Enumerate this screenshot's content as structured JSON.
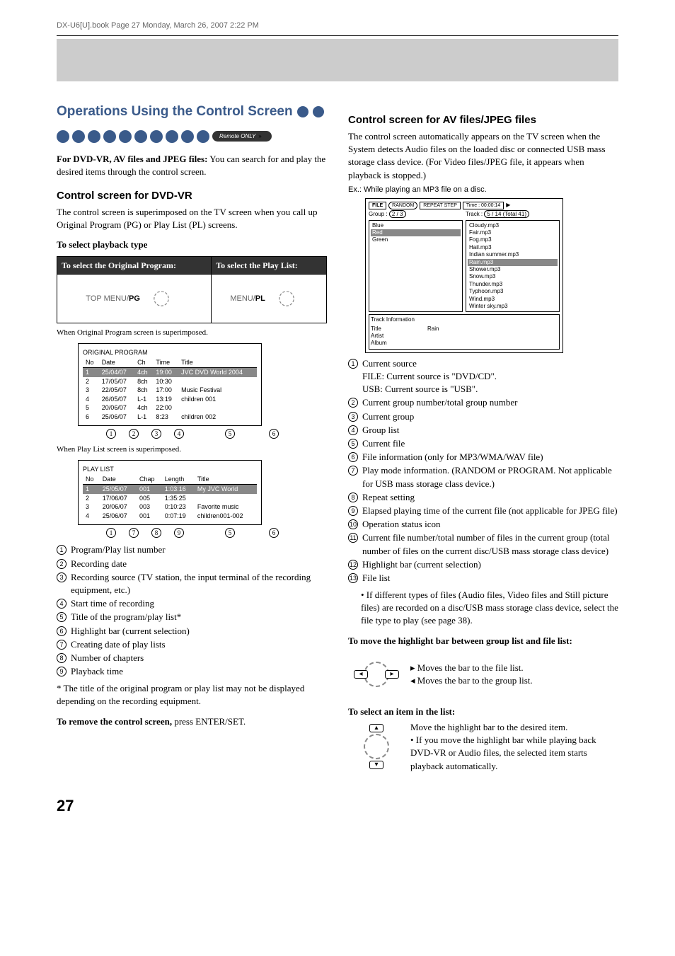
{
  "header": "DX-U6[U].book  Page 27  Monday, March 26, 2007  2:22 PM",
  "left": {
    "title": "Operations Using the Control Screen",
    "remote": "Remote ONLY",
    "intro_bold": "For DVD-VR, AV files and JPEG files:",
    "intro_rest": " You can search for and play the desired items through the control screen.",
    "h1": "Control screen for DVD-VR",
    "p1": "The control screen is superimposed on the TV screen when you call up Original Program (PG) or Play List (PL) screens.",
    "h2": "To select playback type",
    "th1": "To select the Original Program:",
    "th2": "To select the Play List:",
    "td1a": "TOP MENU/",
    "td1b": "PG",
    "td2a": "MENU/",
    "td2b": "PL",
    "cap1": "When Original Program screen is superimposed.",
    "op_title": "ORIGINAL PROGRAM",
    "op_head": [
      "No",
      "Date",
      "Ch",
      "Time",
      "Title"
    ],
    "op_rows": [
      [
        "1",
        "25/04/07",
        "4ch",
        "19:00",
        "JVC DVD World 2004"
      ],
      [
        "2",
        "17/05/07",
        "8ch",
        "10:30",
        ""
      ],
      [
        "3",
        "22/05/07",
        "8ch",
        "17:00",
        "Music Festival"
      ],
      [
        "4",
        "26/05/07",
        "L-1",
        "13:19",
        "children 001"
      ],
      [
        "5",
        "20/06/07",
        "4ch",
        "22:00",
        ""
      ],
      [
        "6",
        "25/06/07",
        "L-1",
        "8:23",
        "children 002"
      ]
    ],
    "cap2": "When Play List screen is superimposed.",
    "pl_title": "PLAY LIST",
    "pl_head": [
      "No",
      "Date",
      "Chap",
      "Length",
      "Title"
    ],
    "pl_rows": [
      [
        "1",
        "25/05/07",
        "001",
        "1:03:16",
        "My JVC World"
      ],
      [
        "2",
        "17/06/07",
        "005",
        "1:35:25",
        ""
      ],
      [
        "3",
        "20/06/07",
        "003",
        "0:10:23",
        "Favorite music"
      ],
      [
        "4",
        "25/06/07",
        "001",
        "0:07:19",
        "children001-002"
      ]
    ],
    "legend": [
      "Program/Play list number",
      "Recording date",
      "Recording source (TV station, the input terminal of the recording equipment, etc.)",
      "Start time of recording",
      "Title of the program/play list*",
      "Highlight bar (current selection)",
      "Creating date of play lists",
      "Number of chapters",
      "Playback time"
    ],
    "footnote": "* The title of the original program or play list may not be displayed depending on the recording equipment.",
    "remove_bold": "To remove the control screen,",
    "remove_rest": " press ENTER/SET."
  },
  "right": {
    "h1": "Control screen for AV files/JPEG files",
    "p1": "The control screen automatically appears on the TV screen when the System detects Audio files on the loaded disc or connected USB mass storage class device. (For Video files/JPEG file, it appears when playback is stopped.)",
    "ex": "Ex.: While playing an MP3 file on a disc.",
    "fs": {
      "file": "FILE",
      "random": "RANDOM",
      "repeat": "REPEAT STEP",
      "time": "Time :  00:00:14",
      "group_lbl": "Group :",
      "group_val": "2 / 3",
      "track_lbl": "Track :",
      "track_val": "5 / 14 (Total 41)",
      "left_items": [
        "Blue",
        "Red",
        "Green"
      ],
      "right_items": [
        "Cloudy.mp3",
        "Fair.mp3",
        "Fog.mp3",
        "Hail.mp3",
        "Indian summer.mp3",
        "Rain.mp3",
        "Shower.mp3",
        "Snow.mp3",
        "Thunder.mp3",
        "Typhoon.mp3",
        "Wind.mp3",
        "Winter sky.mp3"
      ],
      "info_title": "Track Information",
      "info": [
        [
          "Title",
          "Rain"
        ],
        [
          "Artist",
          ""
        ],
        [
          "Album",
          ""
        ]
      ]
    },
    "legend": [
      "Current source",
      "Current group number/total group number",
      "Current group",
      "Group list",
      "Current file",
      "File information (only for MP3/WMA/WAV file)",
      "Play mode information. (RANDOM or PROGRAM. Not applicable for USB mass storage class device.)",
      "Repeat setting",
      "Elapsed playing time of the current file (not applicable for JPEG file)",
      "Operation status icon",
      "Current file number/total number of files in the current group (total number of files on the current disc/USB mass storage class device)",
      "Highlight bar (current selection)",
      "File list"
    ],
    "sub1a": "FILE: Current source is \"DVD/CD\".",
    "sub1b": "USB: Current source is \"USB\".",
    "bullet": "• If different types of files (Audio files, Video files and Still picture files) are recorded on a disc/USB mass storage class device, select the file type to play (see page 38).",
    "h2": "To move the highlight bar between group list and file list:",
    "m1": "Moves the bar to the file list.",
    "m2": "Moves the bar to the group list.",
    "h3": "To select an item in the list:",
    "m3": "Move the highlight bar to the desired item.",
    "m4": "• If you move the highlight bar while playing back DVD-VR or Audio files, the selected item starts playback automatically."
  },
  "pagenum": "27"
}
